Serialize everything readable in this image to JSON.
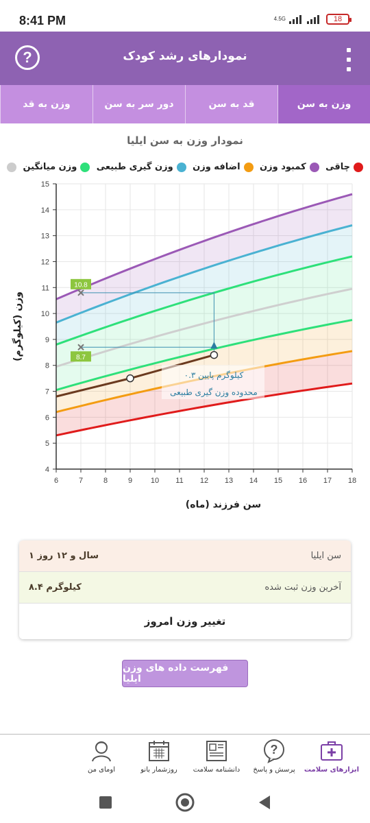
{
  "status_bar": {
    "time": "8:41 PM",
    "network": "4.5G",
    "battery": "18"
  },
  "app_bar": {
    "title": "نمودارهای رشد کودک",
    "help_icon": "help-circle-icon",
    "menu_icon": "more-vertical-icon"
  },
  "tabs": [
    {
      "label": "وزن به سن",
      "active": true
    },
    {
      "label": "قد به سن",
      "active": false
    },
    {
      "label": "دور سر به سن",
      "active": false
    },
    {
      "label": "وزن به قد",
      "active": false
    }
  ],
  "chart_title": "نمودار وزن به سن ایلیا",
  "legend": [
    {
      "label": "چاقی",
      "color": "#e01b1b"
    },
    {
      "label": "کمبود وزن",
      "color": "#9b59b6"
    },
    {
      "label": "اضافه وزن",
      "color": "#f39c12"
    },
    {
      "label": "وزن گیری طبیعی",
      "color": "#4ab2d2"
    },
    {
      "label": "وزن میانگین",
      "color": "#2ee07a"
    },
    {
      "label": "",
      "color": "#cccccc"
    }
  ],
  "chart_data": {
    "type": "line",
    "xlabel": "سن فرزند (ماه)",
    "ylabel": "وزن (کیلوگرم)",
    "xlim": [
      6,
      18
    ],
    "ylim": [
      4,
      15
    ],
    "x_ticks": [
      "6",
      "7",
      "8",
      "9",
      "10",
      "11",
      "12",
      "13",
      "14",
      "15",
      "16",
      "17",
      "18"
    ],
    "y_ticks": [
      "4",
      "5",
      "6",
      "7",
      "8",
      "9",
      "10",
      "11",
      "12",
      "13",
      "14",
      "15"
    ],
    "x": [
      6,
      18
    ],
    "curves": [
      {
        "name": "obese",
        "color": "#9b59b6",
        "values": [
          10.55,
          14.6
        ]
      },
      {
        "name": "overweight",
        "color": "#4ab2d2",
        "values": [
          9.65,
          13.4
        ]
      },
      {
        "name": "normal-high",
        "color": "#2ee07a",
        "values": [
          8.8,
          12.2
        ]
      },
      {
        "name": "median",
        "color": "#cfcfcf",
        "values": [
          7.95,
          10.95
        ]
      },
      {
        "name": "normal-low",
        "color": "#2ee07a",
        "values": [
          7.05,
          9.75
        ]
      },
      {
        "name": "underweight",
        "color": "#f39c12",
        "values": [
          6.2,
          8.55
        ]
      },
      {
        "name": "severe-underweight",
        "color": "#e01b1b",
        "values": [
          5.3,
          7.3
        ]
      }
    ],
    "child_series": {
      "x": [
        6,
        9,
        12.4
      ],
      "y": [
        6.8,
        7.5,
        8.4
      ],
      "color": "#6b3a1f"
    },
    "markers": [
      {
        "x": 7,
        "y": 10.8,
        "label": "10.8"
      },
      {
        "x": 7,
        "y": 8.7,
        "label": "8.7"
      }
    ],
    "current_point": {
      "x": 12.4,
      "y": 8.4
    },
    "annotation": [
      "۰.۳ کیلوگرم پایین",
      "محدوده وزن گیری طبیعی"
    ]
  },
  "info": {
    "age_label": "سن ایلیا",
    "age_value": "۱ سال و ۱۲ روز",
    "weight_label": "آخرین وزن ثبت شده",
    "weight_value": "۸.۴ کیلوگرم",
    "change_button": "تغییر وزن امروز"
  },
  "list_button": "فهرست داده های وزن ایلیا",
  "bottom_nav": [
    {
      "label": "ابزارهای سلامت",
      "icon": "health-kit-icon",
      "active": true
    },
    {
      "label": "پرسش و پاسخ",
      "icon": "question-bubble-icon",
      "active": false
    },
    {
      "label": "دانشنامه سلامت",
      "icon": "encyclopedia-icon",
      "active": false
    },
    {
      "label": "روزشمار بانو",
      "icon": "calendar-icon",
      "active": false
    },
    {
      "label": "اومای من",
      "icon": "profile-icon",
      "active": false
    }
  ],
  "system_nav": {
    "recent_icon": "square-icon",
    "home_icon": "home-circle-icon",
    "back_icon": "back-triangle-icon"
  }
}
